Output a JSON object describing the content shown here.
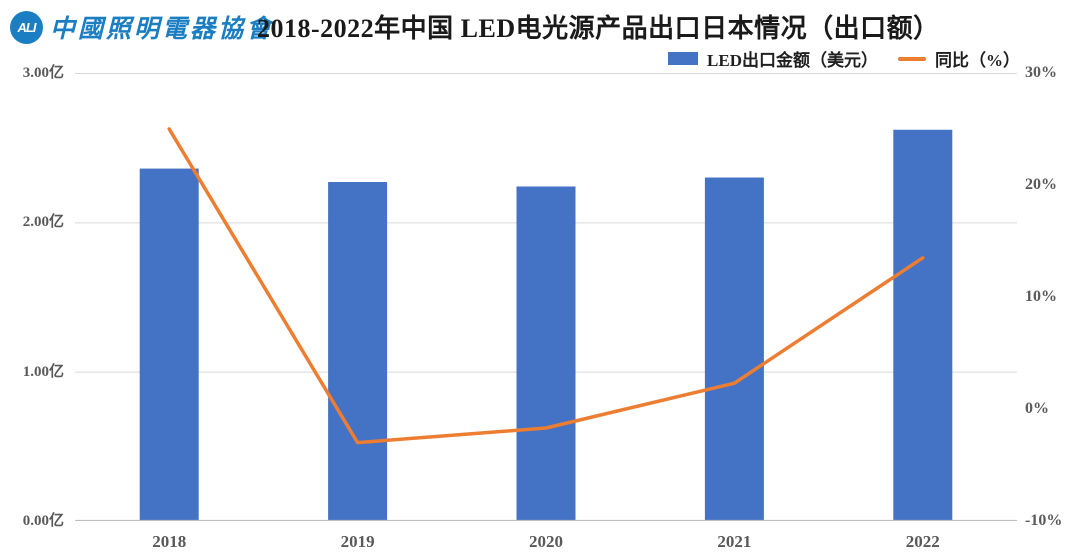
{
  "header": {
    "logo": {
      "abbr": "ALI",
      "name": "中國照明電器協會",
      "color": "#1b7ec2"
    },
    "title": "2018-2022年中国 LED电光源产品出口日本情况（出口额）"
  },
  "legend": {
    "items": [
      {
        "label": "LED出口金额（美元）",
        "swatch": "bar",
        "color": "#4472c4"
      },
      {
        "label": "同比（%）",
        "swatch": "line",
        "color": "#ed7d31"
      }
    ]
  },
  "chart_data": {
    "type": "bar",
    "subtype": "bar+line combo, dual axis",
    "title": "2018-2022年中国 LED电光源产品出口日本情况（出口额）",
    "categories": [
      "2018",
      "2019",
      "2020",
      "2021",
      "2022"
    ],
    "series": [
      {
        "name": "LED出口金额（美元）",
        "type": "bar",
        "axis": "left",
        "unit": "亿美元",
        "values": [
          2.36,
          2.27,
          2.24,
          2.3,
          2.62
        ],
        "color": "#4472c4"
      },
      {
        "name": "同比（%）",
        "type": "line",
        "axis": "right",
        "unit": "%",
        "values": [
          25.0,
          -3.0,
          -1.7,
          2.3,
          13.5
        ],
        "color": "#ed7d31"
      }
    ],
    "left_axis": {
      "min": 0,
      "max": 3,
      "unit": "亿",
      "ticks_top_to_bottom": [
        "3.00亿",
        "2.00亿",
        "1.00亿",
        "0.00亿"
      ]
    },
    "right_axis": {
      "min": -10,
      "max": 30,
      "unit": "%",
      "ticks_top_to_bottom": [
        "30%",
        "20%",
        "10%",
        "0%",
        "-10%"
      ]
    },
    "grid": true,
    "legend_position": "top-right",
    "colors": {
      "bar": "#4472c4",
      "line": "#ed7d31",
      "gridline": "#d9d9d9",
      "axis_line": "#bfbfbf",
      "tick_text": "#595959"
    }
  }
}
